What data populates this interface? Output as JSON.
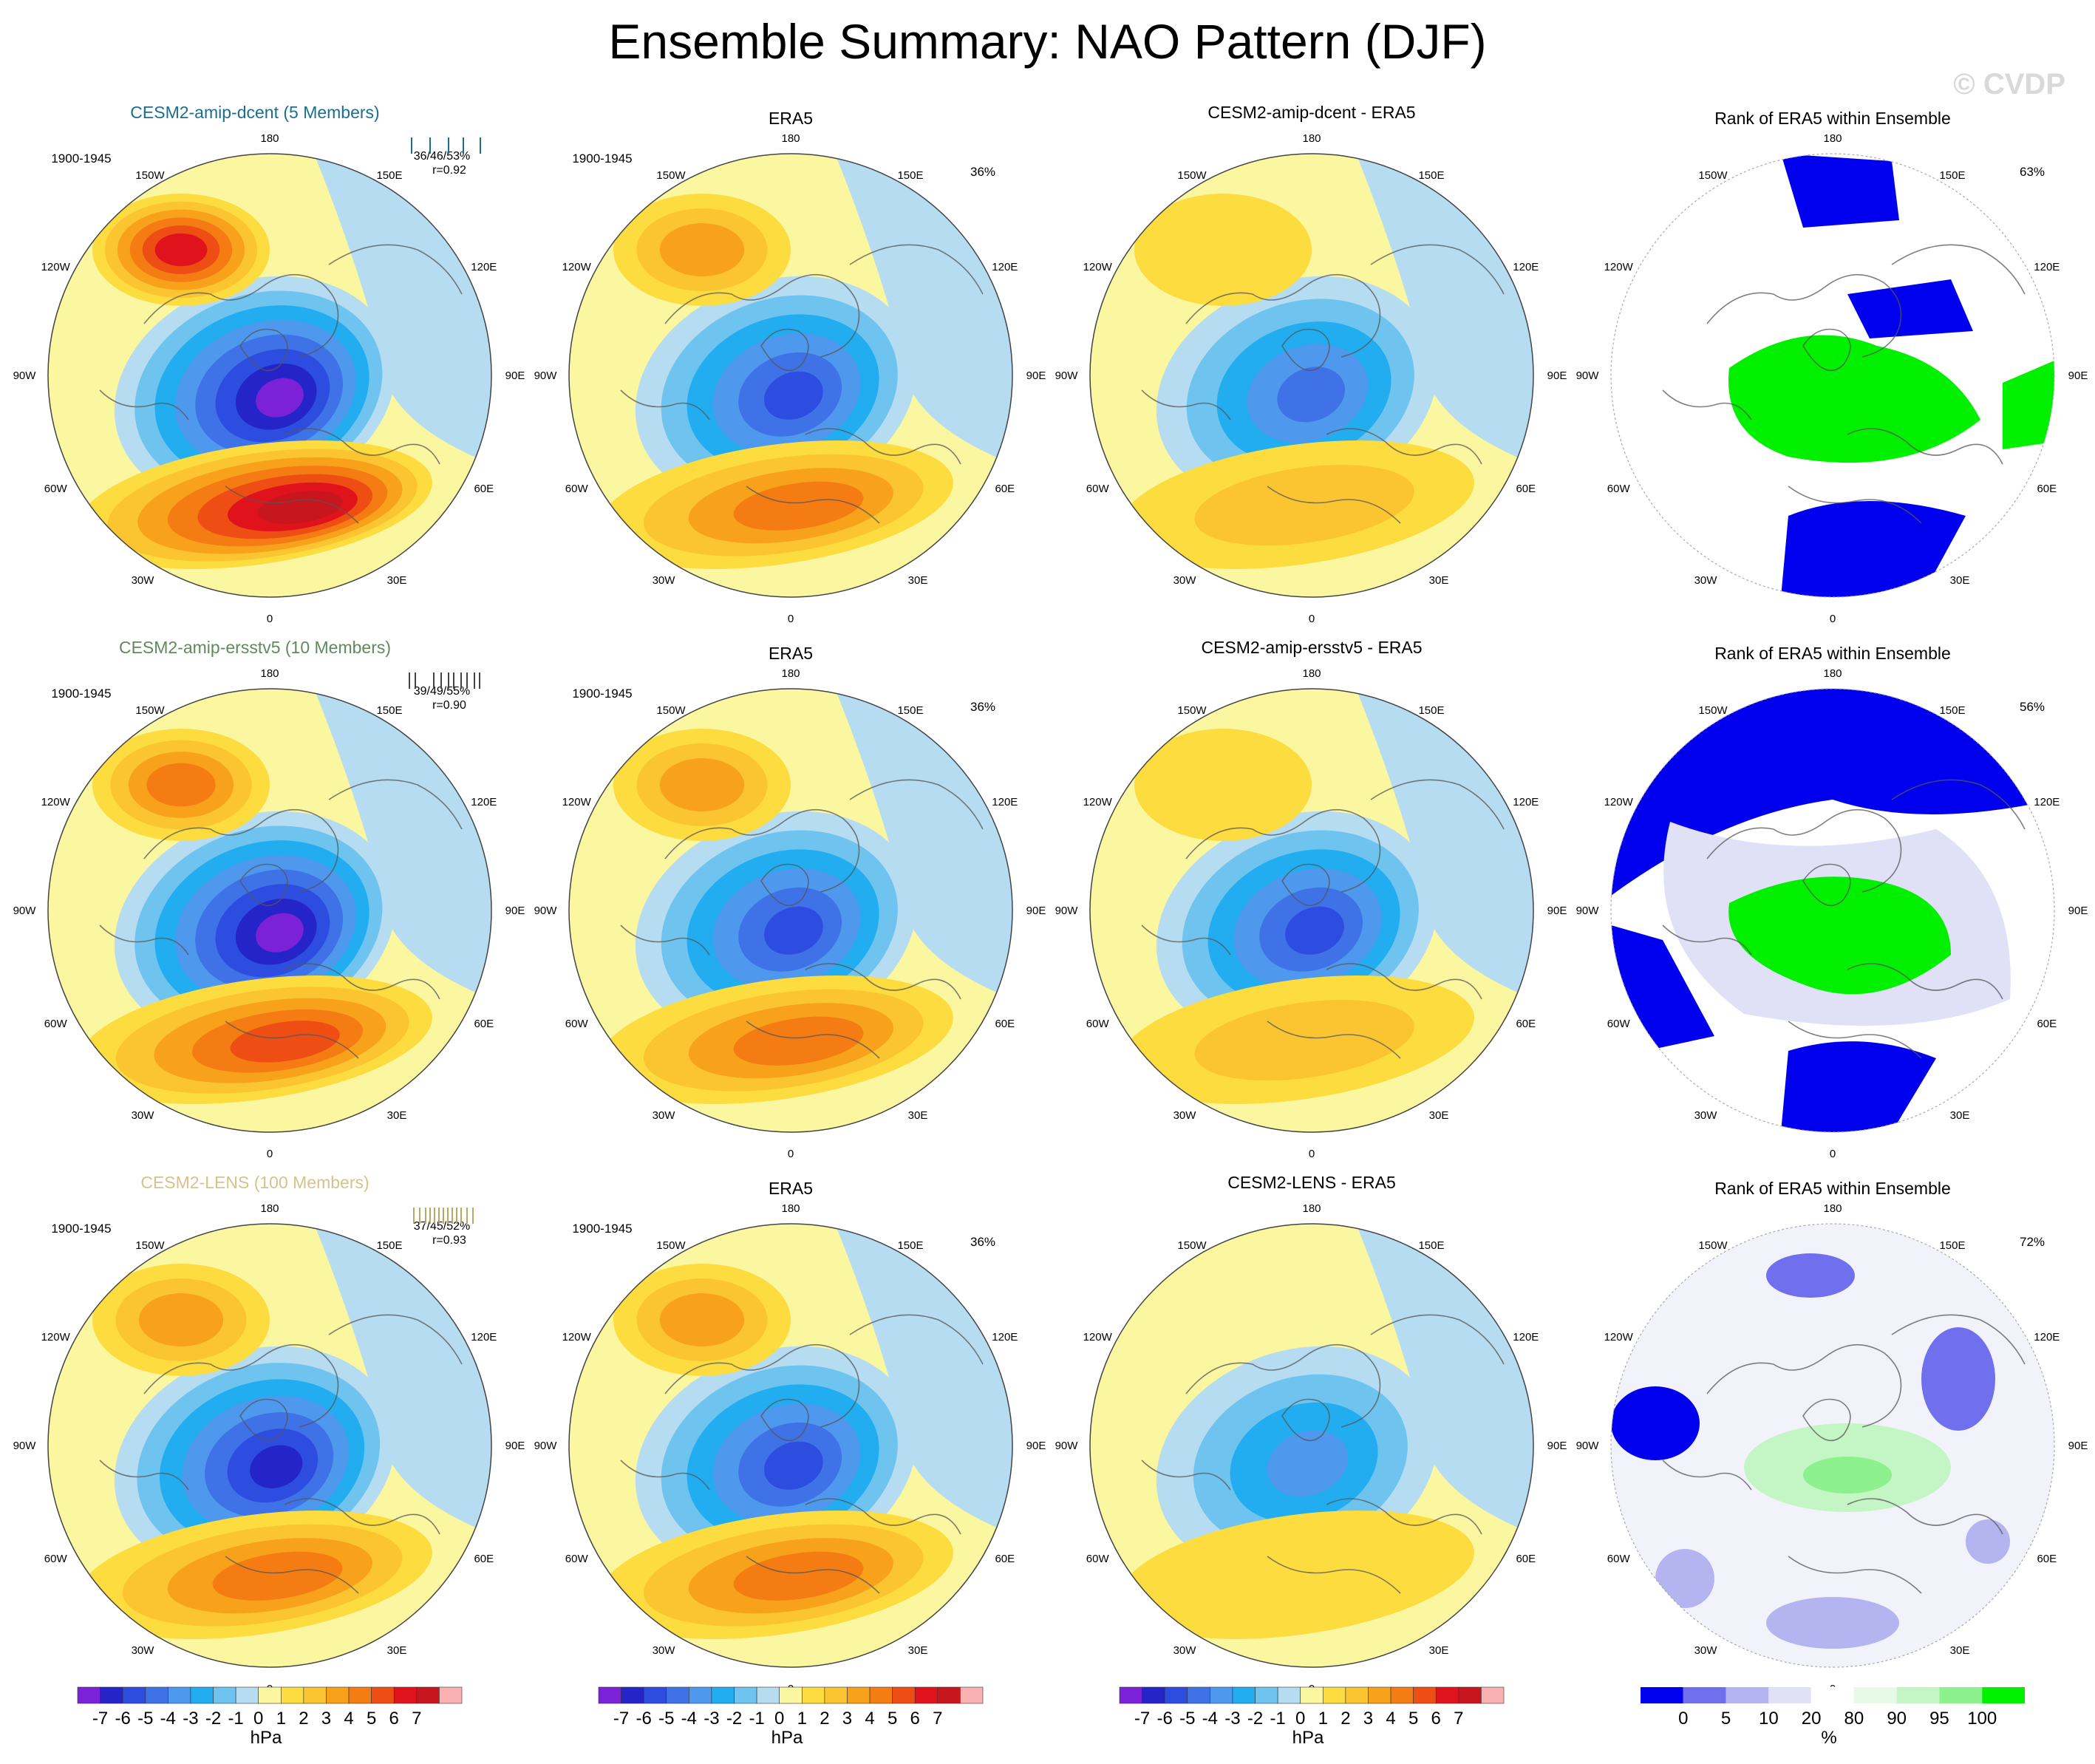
{
  "title": "Ensemble Summary: NAO Pattern (DJF)",
  "watermark": "© CVDP",
  "chart_data": {
    "type": "polar_contour_grid",
    "rows": [
      {
        "ensemble_title": "CESM2-amip-dcent (5 Members)",
        "ensemble_title_color": "#1a6f8f",
        "period": "1900-1945",
        "stats": "36/46/53%",
        "corr": "r=0.92",
        "strip_color": "#1a6f8f",
        "strip_ticks": [
          0.05,
          0.3,
          0.55,
          0.75,
          0.98
        ],
        "era5_title": "ERA5",
        "era5_period": "1900-1945",
        "era5_pct": "36%",
        "diff_title": "CESM2-amip-dcent - ERA5",
        "rank_title": "Rank of ERA5 within Ensemble",
        "rank_pct": "63%",
        "ens_max": 7,
        "ens_min": -7,
        "era_max": 4.5,
        "era_min": -5.5,
        "diff_max": 2,
        "diff_min": -4.5
      },
      {
        "ensemble_title": "CESM2-amip-ersstv5 (10 Members)",
        "ensemble_title_color": "#5e8a5e",
        "period": "1900-1945",
        "stats": "39/49/55%",
        "corr": "r=0.90",
        "strip_color": "#444444",
        "strip_ticks": [
          0.02,
          0.1,
          0.35,
          0.45,
          0.55,
          0.62,
          0.72,
          0.8,
          0.9,
          0.97
        ],
        "era5_title": "ERA5",
        "era5_period": "1900-1945",
        "era5_pct": "36%",
        "diff_title": "CESM2-amip-ersstv5 - ERA5",
        "rank_title": "Rank of ERA5 within Ensemble",
        "rank_pct": "56%",
        "ens_max": 5,
        "ens_min": -7.5,
        "era_max": 4.5,
        "era_min": -5.5,
        "diff_max": 2,
        "diff_min": -5
      },
      {
        "ensemble_title": "CESM2-LENS (100 Members)",
        "ensemble_title_color": "#d6c38a",
        "period": "1900-1945",
        "stats": "37/45/52%",
        "corr": "r=0.93",
        "strip_color": "#b8a860",
        "strip_ticks": [
          0.08,
          0.16,
          0.24,
          0.3,
          0.36,
          0.42,
          0.48,
          0.54,
          0.6,
          0.66,
          0.72,
          0.8,
          0.88
        ],
        "era5_title": "ERA5",
        "era5_period": "1900-1945",
        "era5_pct": "36%",
        "diff_title": "CESM2-LENS - ERA5",
        "rank_title": "Rank of ERA5 within Ensemble",
        "rank_pct": "72%",
        "ens_max": 4.5,
        "ens_min": -6.5,
        "era_max": 4.5,
        "era_min": -5.5,
        "diff_max": 1,
        "diff_min": -3.5
      }
    ],
    "map_labels": [
      "180",
      "150E",
      "120E",
      "90E",
      "60E",
      "30E",
      "0",
      "30W",
      "60W",
      "90W",
      "120W",
      "150W"
    ],
    "colorbar_hpa": {
      "unit": "hPa",
      "labels": [
        "-7",
        "-6",
        "-5",
        "-4",
        "-3",
        "-2",
        "-1",
        "0",
        "1",
        "2",
        "3",
        "4",
        "5",
        "6",
        "7"
      ],
      "colors": [
        "#7b22d8",
        "#2424c8",
        "#2d4de0",
        "#3f72e6",
        "#4e98ee",
        "#21adf0",
        "#6ec4ee",
        "#b5dcf1",
        "#fbf6a0",
        "#fddc40",
        "#fbc531",
        "#f8a21c",
        "#f57c13",
        "#ee4d13",
        "#e0121b",
        "#c8161f",
        "#f9b0b0"
      ]
    },
    "colorbar_rank": {
      "unit": "%",
      "labels": [
        "0",
        "5",
        "10",
        "20",
        "80",
        "90",
        "95",
        "100"
      ],
      "colors": [
        "#0000ee",
        "#7070ee",
        "#b4b4f0",
        "#e0e0f6",
        "#ffffff",
        "#e6fae6",
        "#c4f5c4",
        "#8cf08c",
        "#00f000"
      ]
    }
  }
}
